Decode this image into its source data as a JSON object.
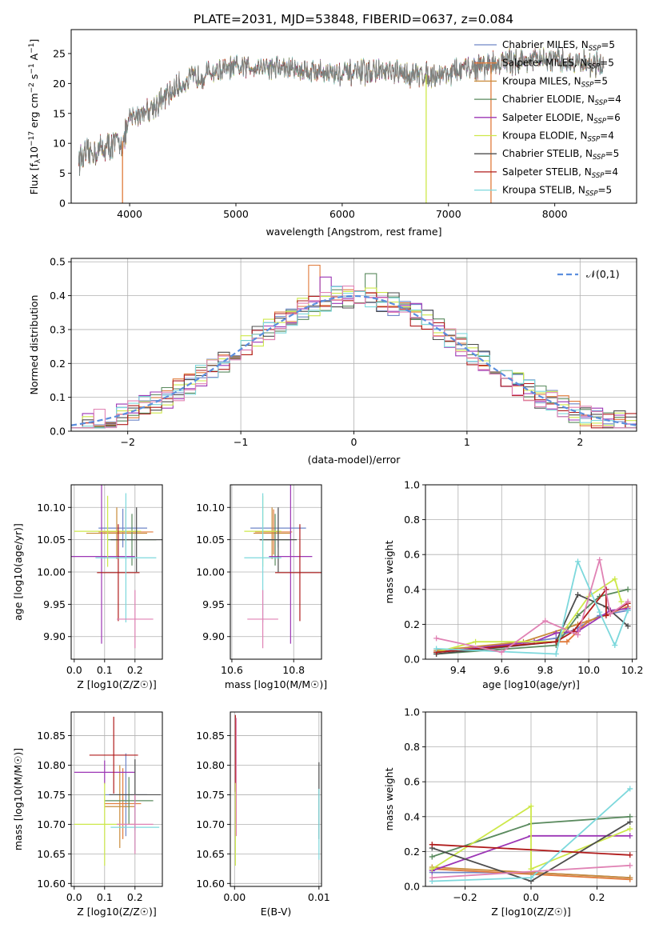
{
  "title": "PLATE=2031, MJD=53848, FIBERID=0637, z=0.084",
  "colors": {
    "Chabrier MILES": "#6f86c8",
    "Salpeter MILES": "#e07a3a",
    "Kroupa MILES": "#c98b3a",
    "Chabrier ELODIE": "#5a8a5e",
    "Salpeter ELODIE": "#9c36b5",
    "Kroupa ELODIE": "#cde84a",
    "Chabrier STELIB": "#4d4d4d",
    "Salpeter STELIB": "#b01c1c",
    "Kroupa STELIB": "#7dd8dc",
    "extra": "#e082b4",
    "gauss": "#5b8ede"
  },
  "chart_data": [
    {
      "type": "line",
      "title": "PLATE=2031, MJD=53848, FIBERID=0637, z=0.084",
      "xlabel": "wavelength [Angstrom, rest frame]",
      "ylabel": "Flux [f_λ 10^-17 erg cm^-2 s^-1 A^-1]",
      "xlim": [
        3450,
        8770
      ],
      "ylim": [
        0,
        29
      ],
      "xticks": [
        4000,
        5000,
        6000,
        7000,
        8000
      ],
      "yticks": [
        0,
        5,
        10,
        15,
        20,
        25
      ],
      "legend_position": "upper-right",
      "legend": [
        {
          "name": "Chabrier MILES",
          "nssp": "5"
        },
        {
          "name": "Salpeter MILES",
          "nssp": "5"
        },
        {
          "name": "Kroupa MILES",
          "nssp": "5"
        },
        {
          "name": "Chabrier ELODIE",
          "nssp": "4"
        },
        {
          "name": "Salpeter ELODIE",
          "nssp": "6"
        },
        {
          "name": "Kroupa ELODIE",
          "nssp": "4"
        },
        {
          "name": "Chabrier STELIB",
          "nssp": "5"
        },
        {
          "name": "Salpeter STELIB",
          "nssp": "4"
        },
        {
          "name": "Kroupa STELIB",
          "nssp": "5"
        }
      ],
      "continuum": [
        [
          3550,
          7.5
        ],
        [
          3650,
          8.5
        ],
        [
          3800,
          9.5
        ],
        [
          3950,
          10.5
        ],
        [
          4000,
          14
        ],
        [
          4150,
          15.5
        ],
        [
          4300,
          17
        ],
        [
          4450,
          19.5
        ],
        [
          4600,
          21
        ],
        [
          4800,
          22
        ],
        [
          5000,
          22.5
        ],
        [
          5200,
          23
        ],
        [
          5500,
          22.5
        ],
        [
          5800,
          22
        ],
        [
          6000,
          21.5
        ],
        [
          6300,
          22
        ],
        [
          6600,
          21.5
        ],
        [
          6900,
          21.5
        ],
        [
          7200,
          22.5
        ],
        [
          7500,
          23.5
        ],
        [
          7800,
          24
        ],
        [
          8200,
          23.5
        ],
        [
          8450,
          23
        ]
      ],
      "dips": [
        [
          3933,
          0
        ],
        [
          6790,
          0
        ],
        [
          7400,
          0
        ]
      ]
    },
    {
      "type": "area",
      "xlabel": "(data-model)/error",
      "ylabel": "Normed distribution",
      "xlim": [
        -2.5,
        2.5
      ],
      "ylim": [
        0,
        0.51
      ],
      "xticks": [
        -2,
        -1,
        0,
        1,
        2
      ],
      "yticks": [
        0.0,
        0.1,
        0.2,
        0.3,
        0.4,
        0.5
      ],
      "legend": "𝒩(0,1)",
      "legend_position": "top-right",
      "bin_width": 0.1,
      "grid": true
    },
    {
      "type": "scatter",
      "xlabel": "Z [log10(Z/Z☉)]",
      "ylabel": "age [log10(age/yr)]",
      "xlim": [
        -0.01,
        0.29
      ],
      "ylim": [
        9.865,
        10.135
      ],
      "xticks": [
        0.0,
        0.1,
        0.2
      ],
      "yticks": [
        9.9,
        9.95,
        10.0,
        10.05,
        10.1
      ],
      "points": [
        {
          "series": "Chabrier MILES",
          "x": 0.16,
          "y": 10.068,
          "xerr": 0.08,
          "yerr": 0.03
        },
        {
          "series": "Salpeter MILES",
          "x": 0.17,
          "y": 10.062,
          "xerr": 0.09,
          "yerr": 0.035
        },
        {
          "series": "Kroupa MILES",
          "x": 0.14,
          "y": 10.06,
          "xerr": 0.1,
          "yerr": 0.04
        },
        {
          "series": "Chabrier ELODIE",
          "x": 0.19,
          "y": 10.05,
          "xerr": 0.08,
          "yerr": 0.04
        },
        {
          "series": "Salpeter ELODIE",
          "x": 0.09,
          "y": 10.024,
          "xerr": 0.11,
          "yerr": 0.135
        },
        {
          "series": "Kroupa ELODIE",
          "x": 0.11,
          "y": 10.063,
          "xerr": 0.11,
          "yerr": 0.055
        },
        {
          "series": "Chabrier STELIB",
          "x": 0.205,
          "y": 10.05,
          "xerr": 0.085,
          "yerr": 0.05
        },
        {
          "series": "Salpeter STELIB",
          "x": 0.145,
          "y": 9.999,
          "xerr": 0.07,
          "yerr": 0.075
        },
        {
          "series": "Kroupa STELIB",
          "x": 0.17,
          "y": 10.022,
          "xerr": 0.1,
          "yerr": 0.1
        },
        {
          "series": "extra",
          "x": 0.2,
          "y": 9.927,
          "xerr": 0.06,
          "yerr": 0.045
        }
      ]
    },
    {
      "type": "scatter",
      "xlabel": "mass [log10(M/M☉)]",
      "ylabel": "",
      "xlim": [
        10.595,
        10.89
      ],
      "ylim": [
        9.865,
        10.135
      ],
      "xticks": [
        10.6,
        10.8
      ],
      "yticks": [
        9.9,
        9.95,
        10.0,
        10.05,
        10.1
      ],
      "points": [
        {
          "series": "Chabrier MILES",
          "x": 10.75,
          "y": 10.068,
          "xerr": 0.09,
          "yerr": 0.03
        },
        {
          "series": "Salpeter MILES",
          "x": 10.735,
          "y": 10.062,
          "xerr": 0.06,
          "yerr": 0.035
        },
        {
          "series": "Kroupa MILES",
          "x": 10.73,
          "y": 10.06,
          "xerr": 0.06,
          "yerr": 0.04
        },
        {
          "series": "Chabrier ELODIE",
          "x": 10.74,
          "y": 10.05,
          "xerr": 0.05,
          "yerr": 0.04
        },
        {
          "series": "Salpeter ELODIE",
          "x": 10.79,
          "y": 10.024,
          "xerr": 0.07,
          "yerr": 0.135
        },
        {
          "series": "Kroupa ELODIE",
          "x": 10.7,
          "y": 10.063,
          "xerr": 0.06,
          "yerr": 0.055
        },
        {
          "series": "Chabrier STELIB",
          "x": 10.75,
          "y": 10.05,
          "xerr": 0.06,
          "yerr": 0.05
        },
        {
          "series": "Salpeter STELIB",
          "x": 10.82,
          "y": 9.999,
          "xerr": 0.08,
          "yerr": 0.075
        },
        {
          "series": "Kroupa STELIB",
          "x": 10.7,
          "y": 10.022,
          "xerr": 0.06,
          "yerr": 0.1
        },
        {
          "series": "extra",
          "x": 10.7,
          "y": 9.927,
          "xerr": 0.05,
          "yerr": 0.045
        }
      ]
    },
    {
      "type": "line",
      "xlabel": "age [log10(age/yr)]",
      "ylabel": "mass weight",
      "xlim": [
        9.25,
        10.22
      ],
      "ylim": [
        0,
        1.0
      ],
      "xticks": [
        9.4,
        9.6,
        9.8,
        10.0,
        10.2
      ],
      "yticks": [
        0.0,
        0.2,
        0.4,
        0.6,
        0.8,
        1.0
      ],
      "series": [
        {
          "name": "Chabrier MILES",
          "x": [
            9.3,
            9.48,
            9.85,
            9.95,
            10.05,
            10.18
          ],
          "y": [
            0.04,
            0.06,
            0.12,
            0.18,
            0.25,
            0.28
          ]
        },
        {
          "name": "Salpeter MILES",
          "x": [
            9.3,
            9.85,
            9.9,
            10.0,
            10.18
          ],
          "y": [
            0.04,
            0.1,
            0.1,
            0.22,
            0.3
          ]
        },
        {
          "name": "Kroupa MILES",
          "x": [
            9.3,
            9.7,
            9.95,
            10.1,
            10.18
          ],
          "y": [
            0.05,
            0.1,
            0.2,
            0.26,
            0.32
          ]
        },
        {
          "name": "Chabrier ELODIE",
          "x": [
            9.3,
            9.85,
            9.95,
            10.05,
            10.18
          ],
          "y": [
            0.03,
            0.08,
            0.25,
            0.36,
            0.4
          ]
        },
        {
          "name": "Salpeter ELODIE",
          "x": [
            9.3,
            9.75,
            9.85,
            9.95,
            10.1,
            10.18
          ],
          "y": [
            0.04,
            0.1,
            0.15,
            0.16,
            0.28,
            0.29
          ]
        },
        {
          "name": "Kroupa ELODIE",
          "x": [
            9.3,
            9.48,
            9.85,
            10.0,
            10.12,
            10.15
          ],
          "y": [
            0.04,
            0.1,
            0.1,
            0.36,
            0.46,
            0.33
          ]
        },
        {
          "name": "Chabrier STELIB",
          "x": [
            9.3,
            9.85,
            9.95,
            10.08,
            10.18
          ],
          "y": [
            0.03,
            0.1,
            0.37,
            0.3,
            0.19
          ]
        },
        {
          "name": "Salpeter STELIB",
          "x": [
            9.3,
            9.85,
            9.93,
            10.08,
            10.08,
            10.18
          ],
          "y": [
            0.04,
            0.1,
            0.16,
            0.4,
            0.25,
            0.32
          ]
        },
        {
          "name": "Kroupa STELIB",
          "x": [
            9.3,
            9.85,
            9.95,
            10.05,
            10.12,
            10.18
          ],
          "y": [
            0.06,
            0.03,
            0.56,
            0.27,
            0.08,
            0.28
          ]
        },
        {
          "name": "extra",
          "x": [
            9.3,
            9.6,
            9.8,
            9.95,
            10.05,
            10.1,
            10.18
          ],
          "y": [
            0.12,
            0.04,
            0.22,
            0.14,
            0.57,
            0.26,
            0.33
          ]
        }
      ]
    },
    {
      "type": "scatter",
      "xlabel": "Z [log10(Z/Z☉)]",
      "ylabel": "mass [log10(M/M☉)]",
      "xlim": [
        -0.01,
        0.29
      ],
      "ylim": [
        10.595,
        10.89
      ],
      "xticks": [
        0.0,
        0.1,
        0.2
      ],
      "yticks": [
        10.6,
        10.65,
        10.7,
        10.75,
        10.8,
        10.85
      ],
      "points": [
        {
          "series": "Chabrier MILES",
          "x": 0.17,
          "y": 10.75,
          "xerr": 0.07,
          "yerr": 0.07
        },
        {
          "series": "Salpeter MILES",
          "x": 0.16,
          "y": 10.735,
          "xerr": 0.06,
          "yerr": 0.06
        },
        {
          "series": "Kroupa MILES",
          "x": 0.15,
          "y": 10.73,
          "xerr": 0.05,
          "yerr": 0.07
        },
        {
          "series": "Chabrier ELODIE",
          "x": 0.18,
          "y": 10.74,
          "xerr": 0.08,
          "yerr": 0.04
        },
        {
          "series": "Salpeter ELODIE",
          "x": 0.1,
          "y": 10.788,
          "xerr": 0.1,
          "yerr": 0.02
        },
        {
          "series": "Kroupa ELODIE",
          "x": 0.1,
          "y": 10.7,
          "xerr": 0.1,
          "yerr": 0.07
        },
        {
          "series": "Chabrier STELIB",
          "x": 0.2,
          "y": 10.75,
          "xerr": 0.085,
          "yerr": 0.06
        },
        {
          "series": "Salpeter STELIB",
          "x": 0.13,
          "y": 10.817,
          "xerr": 0.08,
          "yerr": 0.065
        },
        {
          "series": "Kroupa STELIB",
          "x": 0.2,
          "y": 10.695,
          "xerr": 0.08,
          "yerr": 0.04
        },
        {
          "series": "extra",
          "x": 0.2,
          "y": 10.7,
          "xerr": 0.06,
          "yerr": 0.05
        }
      ]
    },
    {
      "type": "scatter",
      "xlabel": "E(B-V)",
      "ylabel": "",
      "xlim": [
        -0.0005,
        0.0103
      ],
      "ylim": [
        10.595,
        10.89
      ],
      "xticks": [
        0.0,
        0.01
      ],
      "yticks": [
        10.6,
        10.65,
        10.7,
        10.75,
        10.8,
        10.85
      ],
      "points": [
        {
          "series": "Salpeter STELIB",
          "x": 0.0001,
          "y": 10.82,
          "xerr": 0,
          "yerr": 0.065
        },
        {
          "series": "Kroupa ELODIE",
          "x": 0.0001,
          "y": 10.7,
          "xerr": 0,
          "yerr": 0.07
        },
        {
          "series": "extra",
          "x": 0.0002,
          "y": 10.78,
          "xerr": 0,
          "yerr": 0.1
        },
        {
          "series": "Chabrier STELIB",
          "x": 0.01,
          "y": 10.74,
          "xerr": 0,
          "yerr": 0.065
        },
        {
          "series": "Kroupa STELIB",
          "x": 0.01,
          "y": 10.7,
          "xerr": 0,
          "yerr": 0.06
        }
      ]
    },
    {
      "type": "line",
      "xlabel": "Z [log10(Z/Z☉)]",
      "ylabel": "mass weight",
      "xlim": [
        -0.32,
        0.32
      ],
      "ylim": [
        0,
        1.0
      ],
      "xticks": [
        -0.2,
        0.0,
        0.2
      ],
      "yticks": [
        0.0,
        0.2,
        0.4,
        0.6,
        0.8,
        1.0
      ],
      "series": [
        {
          "name": "Chabrier MILES",
          "x": [
            -0.3,
            0.0,
            0.3
          ],
          "y": [
            0.08,
            0.08,
            0.05
          ]
        },
        {
          "name": "Salpeter MILES",
          "x": [
            -0.3,
            0.0,
            0.3
          ],
          "y": [
            0.1,
            0.07,
            0.04
          ]
        },
        {
          "name": "Kroupa MILES",
          "x": [
            -0.3,
            0.0,
            0.3
          ],
          "y": [
            0.11,
            0.08,
            0.05
          ]
        },
        {
          "name": "Chabrier ELODIE",
          "x": [
            -0.3,
            0.0,
            0.3
          ],
          "y": [
            0.17,
            0.36,
            0.4
          ]
        },
        {
          "name": "Salpeter ELODIE",
          "x": [
            -0.3,
            0.0,
            0.3
          ],
          "y": [
            0.09,
            0.29,
            0.29
          ]
        },
        {
          "name": "Kroupa ELODIE",
          "x": [
            -0.3,
            0.0,
            0.0,
            0.3
          ],
          "y": [
            0.1,
            0.46,
            0.1,
            0.33
          ]
        },
        {
          "name": "Chabrier STELIB",
          "x": [
            -0.3,
            0.0,
            0.3
          ],
          "y": [
            0.22,
            0.03,
            0.37
          ]
        },
        {
          "name": "Salpeter STELIB",
          "x": [
            -0.3,
            0.3
          ],
          "y": [
            0.24,
            0.18
          ]
        },
        {
          "name": "Kroupa STELIB",
          "x": [
            -0.3,
            0.0,
            0.3
          ],
          "y": [
            0.03,
            0.05,
            0.56
          ]
        },
        {
          "name": "extra",
          "x": [
            -0.3,
            0.3
          ],
          "y": [
            0.05,
            0.12
          ]
        }
      ]
    }
  ]
}
